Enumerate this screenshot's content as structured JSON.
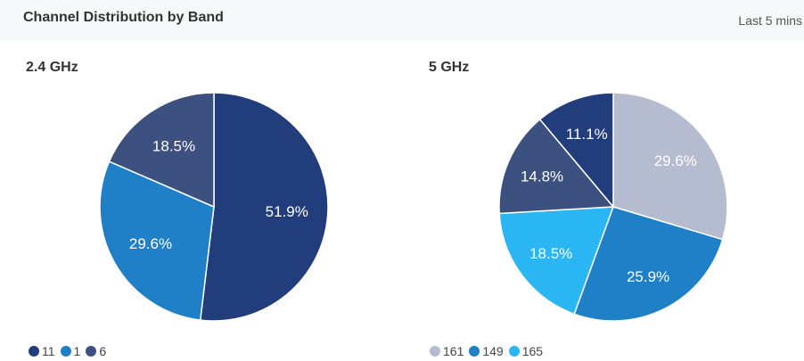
{
  "header": {
    "title": "Channel Distribution by Band",
    "time_range": "Last 5 mins"
  },
  "chart_data": [
    {
      "type": "pie",
      "title": "2.4 GHz",
      "slices": [
        {
          "label": "11",
          "value": 51.9,
          "display": "51.9%",
          "color": "#223d7c"
        },
        {
          "label": "1",
          "value": 29.6,
          "display": "29.6%",
          "color": "#1f7fc7"
        },
        {
          "label": "6",
          "value": 18.5,
          "display": "18.5%",
          "color": "#3c5180"
        }
      ],
      "legend_placement": "bottom-left"
    },
    {
      "type": "pie",
      "title": "5 GHz",
      "slices": [
        {
          "label": "161",
          "value": 29.6,
          "display": "29.6%",
          "color": "#b5bcd0"
        },
        {
          "label": "149",
          "value": 25.9,
          "display": "25.9%",
          "color": "#1f7fc7"
        },
        {
          "label": "165",
          "value": 18.5,
          "display": "18.5%",
          "color": "#2ab6f2"
        },
        {
          "label": "",
          "value": 14.8,
          "display": "14.8%",
          "color": "#3c5180"
        },
        {
          "label": "",
          "value": 11.1,
          "display": "11.1%",
          "color": "#223d7c"
        }
      ],
      "legend_placement": "bottom-left"
    }
  ]
}
